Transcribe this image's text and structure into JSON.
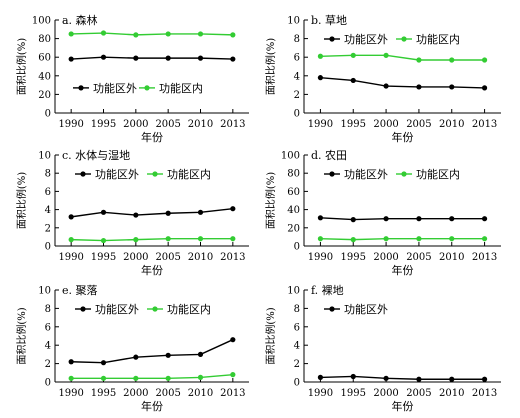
{
  "colors": {
    "outside": "#000000",
    "inside": "#33cc33",
    "axis": "#000000"
  },
  "chart_data": [
    {
      "type": "line",
      "title": "a. 森林",
      "xlabel": "年份",
      "ylabel": "面积比例(%)",
      "x": [
        1990,
        1995,
        2000,
        2005,
        2010,
        2013
      ],
      "ylim": [
        0,
        100
      ],
      "yticks": [
        0,
        20,
        40,
        60,
        80,
        100
      ],
      "legend": "bottom",
      "series": [
        {
          "name": "功能区外",
          "values": [
            58,
            60,
            59,
            59,
            59,
            58
          ]
        },
        {
          "name": "功能区内",
          "values": [
            85,
            86,
            84,
            85,
            85,
            84
          ]
        }
      ]
    },
    {
      "type": "line",
      "title": "b. 草地",
      "xlabel": "年份",
      "ylabel": "面积比例(%)",
      "x": [
        1990,
        1995,
        2000,
        2005,
        2010,
        2013
      ],
      "ylim": [
        0,
        10
      ],
      "yticks": [
        0,
        2,
        4,
        6,
        8,
        10
      ],
      "legend": "top",
      "series": [
        {
          "name": "功能区外",
          "values": [
            3.8,
            3.5,
            2.9,
            2.8,
            2.8,
            2.7
          ]
        },
        {
          "name": "功能区内",
          "values": [
            6.1,
            6.2,
            6.2,
            5.7,
            5.7,
            5.7
          ]
        }
      ]
    },
    {
      "type": "line",
      "title": "c. 水体与湿地",
      "xlabel": "年份",
      "ylabel": "面积比例(%)",
      "x": [
        1990,
        1995,
        2000,
        2005,
        2010,
        2013
      ],
      "ylim": [
        0,
        10
      ],
      "yticks": [
        0,
        2,
        4,
        6,
        8,
        10
      ],
      "legend": "top",
      "series": [
        {
          "name": "功能区外",
          "values": [
            3.2,
            3.7,
            3.4,
            3.6,
            3.7,
            4.1
          ]
        },
        {
          "name": "功能区内",
          "values": [
            0.7,
            0.6,
            0.7,
            0.8,
            0.8,
            0.8
          ]
        }
      ]
    },
    {
      "type": "line",
      "title": "d. 农田",
      "xlabel": "年份",
      "ylabel": "面积比例(%)",
      "x": [
        1990,
        1995,
        2000,
        2005,
        2010,
        2013
      ],
      "ylim": [
        0,
        100
      ],
      "yticks": [
        0,
        20,
        40,
        60,
        80,
        100
      ],
      "legend": "top",
      "series": [
        {
          "name": "功能区外",
          "values": [
            31,
            29,
            30,
            30,
            30,
            30
          ]
        },
        {
          "name": "功能区内",
          "values": [
            8,
            7,
            8,
            8,
            8,
            8
          ]
        }
      ]
    },
    {
      "type": "line",
      "title": "e. 聚落",
      "xlabel": "年份",
      "ylabel": "面积比例(%)",
      "x": [
        1990,
        1995,
        2000,
        2005,
        2010,
        2013
      ],
      "ylim": [
        0,
        10
      ],
      "yticks": [
        0,
        2,
        4,
        6,
        8,
        10
      ],
      "legend": "top",
      "series": [
        {
          "name": "功能区外",
          "values": [
            2.2,
            2.1,
            2.7,
            2.9,
            3.0,
            4.6
          ]
        },
        {
          "name": "功能区内",
          "values": [
            0.4,
            0.4,
            0.4,
            0.4,
            0.5,
            0.8
          ]
        }
      ]
    },
    {
      "type": "line",
      "title": "f. 裸地",
      "xlabel": "年份",
      "ylabel": "面积比例(%)",
      "x": [
        1990,
        1995,
        2000,
        2005,
        2010,
        2013
      ],
      "ylim": [
        0,
        10
      ],
      "yticks": [
        0,
        2,
        4,
        6,
        8,
        10
      ],
      "legend": "top",
      "series": [
        {
          "name": "功能区外",
          "values": [
            0.5,
            0.6,
            0.4,
            0.3,
            0.3,
            0.3
          ]
        }
      ]
    }
  ]
}
